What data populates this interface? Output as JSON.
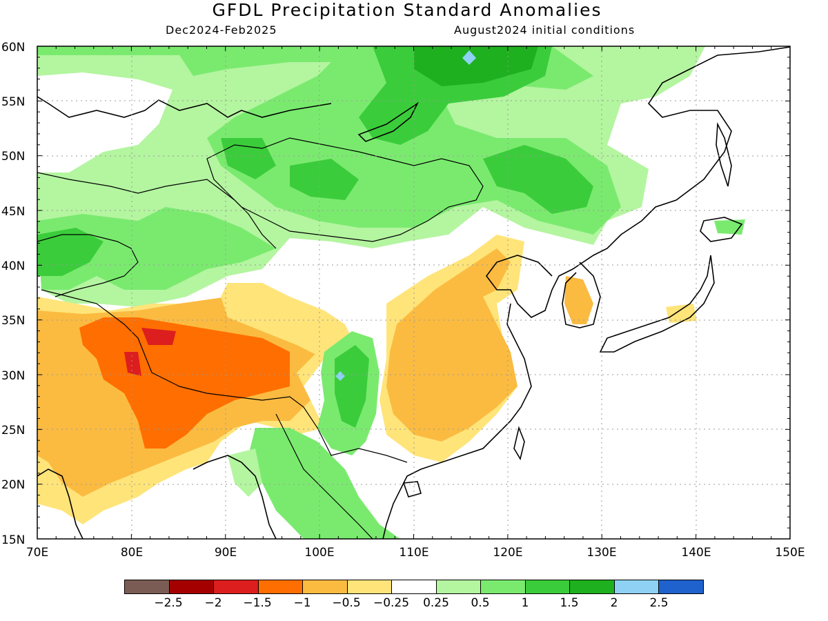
{
  "header": {
    "title": "GFDL Precipitation Standard Anomalies",
    "period": "Dec2024-Feb2025",
    "init": "August2024 initial conditions"
  },
  "map": {
    "lon_range": [
      70,
      150
    ],
    "lat_range": [
      15,
      60
    ],
    "lon_labels": [
      "70E",
      "80E",
      "90E",
      "100E",
      "110E",
      "120E",
      "130E",
      "140E",
      "150E"
    ],
    "lat_labels": [
      "60N",
      "55N",
      "50N",
      "45N",
      "40N",
      "35N",
      "30N",
      "25N",
      "20N",
      "15N"
    ],
    "grid": "dotted"
  },
  "legend": {
    "colors": [
      "#7a5c54",
      "#a50000",
      "#dc1e1e",
      "#ff6e00",
      "#fbbb41",
      "#ffe47a",
      "#ffffff",
      "#b4f5a0",
      "#7aea6f",
      "#3bcc3b",
      "#1fb01f",
      "#8fd1f5",
      "#1f62cd"
    ],
    "labels": [
      "−2.5",
      "−2",
      "−1.5",
      "−1",
      "−0.5",
      "−0.25",
      "0.25",
      "0.5",
      "1",
      "1.5",
      "2",
      "2.5"
    ]
  }
}
